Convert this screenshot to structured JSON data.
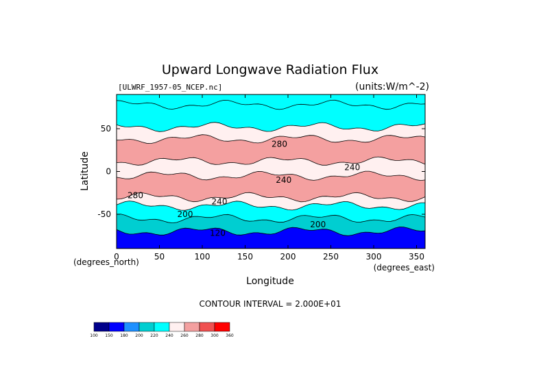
{
  "chart_data": {
    "type": "heatmap",
    "title": "Upward Longwave Radiation Flux",
    "file_label": "[ULWRF_1957-05_NCEP.nc]",
    "units_label": "(units:W/m^-2)",
    "xlabel": "Longitude",
    "ylabel": "Latitude",
    "x_unit_label": "(degrees_east)",
    "y_unit_label": "(degrees_north)",
    "xlim": [
      0,
      360
    ],
    "ylim": [
      -90,
      90
    ],
    "x_ticks": [
      0,
      50,
      100,
      150,
      200,
      250,
      300,
      350
    ],
    "y_ticks": [
      -50,
      0,
      50
    ],
    "contour_interval_text": "CONTOUR INTERVAL = 2.000E+01",
    "levels": [
      100,
      150,
      180,
      200,
      220,
      240,
      260,
      280,
      300,
      360
    ],
    "level_colors": [
      "#00008b",
      "#0000ff",
      "#1e90ff",
      "#00ced1",
      "#00ffff",
      "#fff0f0",
      "#f4a0a0",
      "#f05050",
      "#ff0000"
    ],
    "contour_labels": [
      {
        "text": "280",
        "lon": 190,
        "lat": 32
      },
      {
        "text": "240",
        "lon": 195,
        "lat": -10
      },
      {
        "text": "280",
        "lon": 22,
        "lat": -28
      },
      {
        "text": "240",
        "lon": 120,
        "lat": -35
      },
      {
        "text": "200",
        "lon": 80,
        "lat": -50
      },
      {
        "text": "200",
        "lon": 235,
        "lat": -62
      },
      {
        "text": "120",
        "lon": 118,
        "lat": -72
      },
      {
        "text": "240",
        "lon": 275,
        "lat": 5
      }
    ],
    "bands": [
      {
        "lat_from": 90,
        "lat_to": 78,
        "level": 220
      },
      {
        "lat_from": 78,
        "lat_to": 52,
        "level": 220
      },
      {
        "lat_from": 52,
        "lat_to": 38,
        "level": 240
      },
      {
        "lat_from": 38,
        "lat_to": 12,
        "level": 260
      },
      {
        "lat_from": 12,
        "lat_to": -5,
        "level": 240
      },
      {
        "lat_from": -5,
        "lat_to": -30,
        "level": 260
      },
      {
        "lat_from": -30,
        "lat_to": -40,
        "level": 240
      },
      {
        "lat_from": -40,
        "lat_to": -55,
        "level": 220
      },
      {
        "lat_from": -55,
        "lat_to": -70,
        "level": 200
      },
      {
        "lat_from": -70,
        "lat_to": -90,
        "level": 150
      }
    ]
  }
}
